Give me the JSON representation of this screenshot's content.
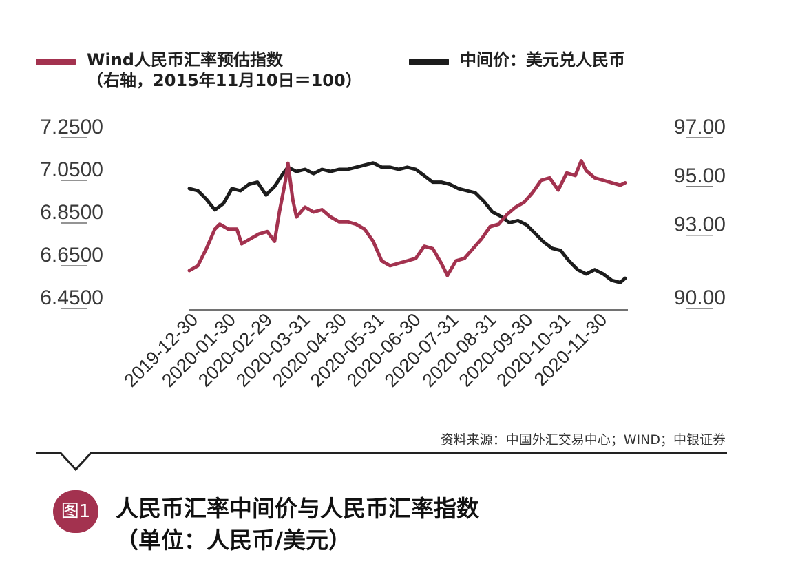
{
  "legend": {
    "series1_label": "Wind人民币汇率预估指数",
    "series1_sub": "（右轴，2015年11月10日＝100）",
    "series2_label": "中间价：美元兑人民币"
  },
  "chart_data": {
    "type": "line",
    "left_axis": {
      "ticks": [
        "7.2500",
        "7.0500",
        "6.8500",
        "6.6500",
        "6.4500"
      ],
      "range": [
        6.45,
        7.25
      ]
    },
    "right_axis": {
      "ticks": [
        "97.00",
        "95.00",
        "93.00",
        "90.00"
      ],
      "range": [
        90.0,
        97.0
      ]
    },
    "x_range": [
      "2019-12-30",
      "2020-12-22"
    ],
    "x_ticks": [
      "2019-12-30",
      "2020-01-30",
      "2020-02-29",
      "2020-03-31",
      "2020-04-30",
      "2020-05-31",
      "2020-06-30",
      "2020-07-31",
      "2020-08-31",
      "2020-09-30",
      "2020-10-31",
      "2020-11-30"
    ],
    "series": [
      {
        "name": "中间价：美元兑人民币",
        "axis": "left",
        "color": "#1c1c1c",
        "points": [
          [
            "2019-12-30",
            6.96
          ],
          [
            "2020-01-06",
            6.95
          ],
          [
            "2020-01-13",
            6.91
          ],
          [
            "2020-01-20",
            6.86
          ],
          [
            "2020-01-27",
            6.89
          ],
          [
            "2020-02-03",
            6.96
          ],
          [
            "2020-02-10",
            6.95
          ],
          [
            "2020-02-17",
            6.98
          ],
          [
            "2020-02-24",
            6.99
          ],
          [
            "2020-03-02",
            6.93
          ],
          [
            "2020-03-09",
            6.97
          ],
          [
            "2020-03-16",
            7.03
          ],
          [
            "2020-03-20",
            7.06
          ],
          [
            "2020-03-27",
            7.04
          ],
          [
            "2020-04-03",
            7.05
          ],
          [
            "2020-04-10",
            7.03
          ],
          [
            "2020-04-17",
            7.05
          ],
          [
            "2020-04-24",
            7.04
          ],
          [
            "2020-05-01",
            7.05
          ],
          [
            "2020-05-08",
            7.05
          ],
          [
            "2020-05-15",
            7.06
          ],
          [
            "2020-05-22",
            7.07
          ],
          [
            "2020-05-29",
            7.08
          ],
          [
            "2020-06-05",
            7.06
          ],
          [
            "2020-06-12",
            7.06
          ],
          [
            "2020-06-19",
            7.05
          ],
          [
            "2020-06-26",
            7.06
          ],
          [
            "2020-07-03",
            7.05
          ],
          [
            "2020-07-10",
            7.02
          ],
          [
            "2020-07-17",
            6.99
          ],
          [
            "2020-07-24",
            6.99
          ],
          [
            "2020-07-31",
            6.98
          ],
          [
            "2020-08-07",
            6.96
          ],
          [
            "2020-08-14",
            6.95
          ],
          [
            "2020-08-21",
            6.94
          ],
          [
            "2020-08-28",
            6.9
          ],
          [
            "2020-09-04",
            6.85
          ],
          [
            "2020-09-11",
            6.83
          ],
          [
            "2020-09-18",
            6.8
          ],
          [
            "2020-09-25",
            6.81
          ],
          [
            "2020-10-02",
            6.79
          ],
          [
            "2020-10-09",
            6.75
          ],
          [
            "2020-10-16",
            6.71
          ],
          [
            "2020-10-23",
            6.68
          ],
          [
            "2020-10-30",
            6.67
          ],
          [
            "2020-11-06",
            6.62
          ],
          [
            "2020-11-13",
            6.58
          ],
          [
            "2020-11-20",
            6.56
          ],
          [
            "2020-11-27",
            6.58
          ],
          [
            "2020-12-04",
            6.56
          ],
          [
            "2020-12-11",
            6.53
          ],
          [
            "2020-12-18",
            6.52
          ],
          [
            "2020-12-22",
            6.54
          ]
        ]
      },
      {
        "name": "Wind人民币汇率预估指数",
        "axis": "right",
        "color": "#a3324f",
        "points": [
          [
            "2019-12-30",
            91.1
          ],
          [
            "2020-01-06",
            91.3
          ],
          [
            "2020-01-13",
            92.0
          ],
          [
            "2020-01-20",
            92.8
          ],
          [
            "2020-01-24",
            93.0
          ],
          [
            "2020-01-31",
            92.8
          ],
          [
            "2020-02-07",
            92.8
          ],
          [
            "2020-02-11",
            92.2
          ],
          [
            "2020-02-18",
            92.4
          ],
          [
            "2020-02-25",
            92.6
          ],
          [
            "2020-03-03",
            92.7
          ],
          [
            "2020-03-09",
            92.3
          ],
          [
            "2020-03-13",
            93.5
          ],
          [
            "2020-03-18",
            94.8
          ],
          [
            "2020-03-20",
            95.5
          ],
          [
            "2020-03-24",
            94.0
          ],
          [
            "2020-03-27",
            93.3
          ],
          [
            "2020-04-03",
            93.7
          ],
          [
            "2020-04-10",
            93.5
          ],
          [
            "2020-04-17",
            93.6
          ],
          [
            "2020-04-24",
            93.3
          ],
          [
            "2020-05-01",
            93.1
          ],
          [
            "2020-05-08",
            93.1
          ],
          [
            "2020-05-15",
            93.0
          ],
          [
            "2020-05-22",
            92.8
          ],
          [
            "2020-05-29",
            92.3
          ],
          [
            "2020-06-05",
            91.5
          ],
          [
            "2020-06-12",
            91.3
          ],
          [
            "2020-06-19",
            91.4
          ],
          [
            "2020-06-26",
            91.5
          ],
          [
            "2020-07-03",
            91.6
          ],
          [
            "2020-07-10",
            92.1
          ],
          [
            "2020-07-17",
            92.0
          ],
          [
            "2020-07-24",
            91.4
          ],
          [
            "2020-07-29",
            90.9
          ],
          [
            "2020-08-05",
            91.5
          ],
          [
            "2020-08-12",
            91.6
          ],
          [
            "2020-08-19",
            92.0
          ],
          [
            "2020-08-26",
            92.4
          ],
          [
            "2020-09-02",
            92.9
          ],
          [
            "2020-09-09",
            93.0
          ],
          [
            "2020-09-16",
            93.4
          ],
          [
            "2020-09-23",
            93.7
          ],
          [
            "2020-09-30",
            93.9
          ],
          [
            "2020-10-07",
            94.3
          ],
          [
            "2020-10-14",
            94.8
          ],
          [
            "2020-10-21",
            94.9
          ],
          [
            "2020-10-28",
            94.4
          ],
          [
            "2020-11-04",
            95.1
          ],
          [
            "2020-11-11",
            95.0
          ],
          [
            "2020-11-16",
            95.6
          ],
          [
            "2020-11-20",
            95.2
          ],
          [
            "2020-11-27",
            94.9
          ],
          [
            "2020-12-04",
            94.8
          ],
          [
            "2020-12-11",
            94.7
          ],
          [
            "2020-12-18",
            94.6
          ],
          [
            "2020-12-22",
            94.7
          ]
        ]
      }
    ]
  },
  "source": "资料来源：中国外汇交易中心；WIND；中银证券",
  "figure": {
    "badge": "图1",
    "caption_line1": "人民币汇率中间价与人民币汇率指数",
    "caption_line2": "（单位：人民币/美元）"
  }
}
